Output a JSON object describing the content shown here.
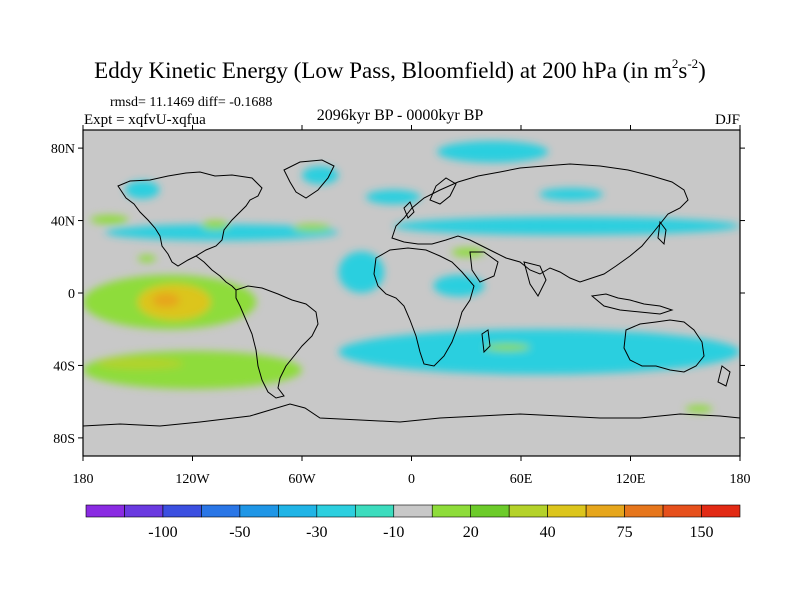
{
  "title": {
    "main": "Eddy Kinetic Energy (Low Pass, Bloomfield) at 200 hPa (in m",
    "sup1": "2",
    "mid": "s",
    "sup2": "-2",
    "close": ")"
  },
  "stats": "rmsd= 11.1469 diff= -0.1688",
  "expt": "Expt = xqfvU-xqfua",
  "period": "2096kyr BP - 0000kyr BP",
  "season": "DJF",
  "map": {
    "lat_ticks": [
      "80N",
      "40N",
      "0",
      "40S",
      "80S"
    ],
    "lat_values": [
      80,
      40,
      0,
      -40,
      -80
    ],
    "lon_ticks": [
      "180",
      "120W",
      "60W",
      "0",
      "60E",
      "120E",
      "180"
    ],
    "lon_values": [
      -180,
      -120,
      -60,
      0,
      60,
      120,
      180
    ],
    "projection": "cylindrical equidistant",
    "land_background": "#c8c8c8"
  },
  "colorbar": {
    "colors": [
      "#8a2be2",
      "#6a3ae0",
      "#3b4fe0",
      "#2a76e6",
      "#1f96e6",
      "#20b4e6",
      "#2ccfdf",
      "#3cdcbe",
      "#c8c8c8",
      "#8edc3a",
      "#6ccb2a",
      "#b4d22a",
      "#dcc51c",
      "#e6a61c",
      "#e6761c",
      "#e6501c",
      "#e22a14"
    ],
    "labels": [
      "-100",
      "-50",
      "-30",
      "-10",
      "20",
      "40",
      "75",
      "150"
    ]
  },
  "field_regions": [
    {
      "name": "n-pacific-cyan",
      "color": "#2ccfdf",
      "lon": [
        -157,
        -138
      ],
      "lat": [
        62,
        52
      ]
    },
    {
      "name": "greenland-cyan",
      "color": "#2ccfdf",
      "lon": [
        -60,
        -40
      ],
      "lat": [
        70,
        60
      ]
    },
    {
      "name": "arctic-cyan",
      "color": "#2ccfdf",
      "lon": [
        14,
        75
      ],
      "lat": [
        84,
        72
      ]
    },
    {
      "name": "eurasia-cyan",
      "color": "#2ccfdf",
      "lon": [
        70,
        105
      ],
      "lat": [
        58,
        51
      ]
    },
    {
      "name": "n-atlantic-cyan",
      "color": "#2ccfdf",
      "lon": [
        -25,
        5
      ],
      "lat": [
        57,
        49
      ]
    },
    {
      "name": "mid-lat-band-cyan",
      "color": "#2ccfdf",
      "lon": [
        -168,
        -40
      ],
      "lat": [
        38,
        29
      ]
    },
    {
      "name": "mid-lat-band-cyan-east",
      "color": "#2ccfdf",
      "lon": [
        -10,
        180
      ],
      "lat": [
        42,
        32
      ]
    },
    {
      "name": "n-pacific-green",
      "color": "#8edc3a",
      "lon": [
        -176,
        -155
      ],
      "lat": [
        43,
        38
      ]
    },
    {
      "name": "n-america-green",
      "color": "#8edc3a",
      "lon": [
        -115,
        -100
      ],
      "lat": [
        40,
        35
      ]
    },
    {
      "name": "n-atlantic-green",
      "color": "#8edc3a",
      "lon": [
        -65,
        -44
      ],
      "lat": [
        38,
        34
      ]
    },
    {
      "name": "w-pacific-green",
      "color": "#8edc3a",
      "lon": [
        -150,
        -140
      ],
      "lat": [
        21,
        17
      ]
    },
    {
      "name": "n-africa-green",
      "color": "#8edc3a",
      "lon": [
        22,
        40
      ],
      "lat": [
        25,
        20
      ]
    },
    {
      "name": "atlantic-cyan",
      "color": "#2ccfdf",
      "lon": [
        -40,
        -15
      ],
      "lat": [
        23,
        0
      ]
    },
    {
      "name": "africa-cyan",
      "color": "#2ccfdf",
      "lon": [
        12,
        40
      ],
      "lat": [
        10,
        -2
      ]
    },
    {
      "name": "s-hemi-cyan",
      "color": "#2ccfdf",
      "lon": [
        -40,
        180
      ],
      "lat": [
        -20,
        -45
      ]
    },
    {
      "name": "tropical-pacific-green",
      "color": "#8edc3a",
      "lon": [
        -180,
        -85
      ],
      "lat": [
        10,
        -20
      ]
    },
    {
      "name": "tropical-pacific-yellow",
      "color": "#dcc51c",
      "lon": [
        -150,
        -110
      ],
      "lat": [
        5,
        -15
      ]
    },
    {
      "name": "tropical-pacific-orange",
      "color": "#e6a61c",
      "lon": [
        -142,
        -127
      ],
      "lat": [
        0,
        -8
      ]
    },
    {
      "name": "s-pacific-green",
      "color": "#8edc3a",
      "lon": [
        -180,
        -60
      ],
      "lat": [
        -32,
        -53
      ]
    },
    {
      "name": "s-pacific-yellow",
      "color": "#b4d22a",
      "lon": [
        -172,
        -125
      ],
      "lat": [
        -36,
        -42
      ]
    },
    {
      "name": "indian-green",
      "color": "#8edc3a",
      "lon": [
        40,
        65
      ],
      "lat": [
        -28,
        -32
      ]
    },
    {
      "name": "s-pacific-green-east",
      "color": "#8edc3a",
      "lon": [
        150,
        165
      ],
      "lat": [
        -62,
        -66
      ]
    }
  ]
}
